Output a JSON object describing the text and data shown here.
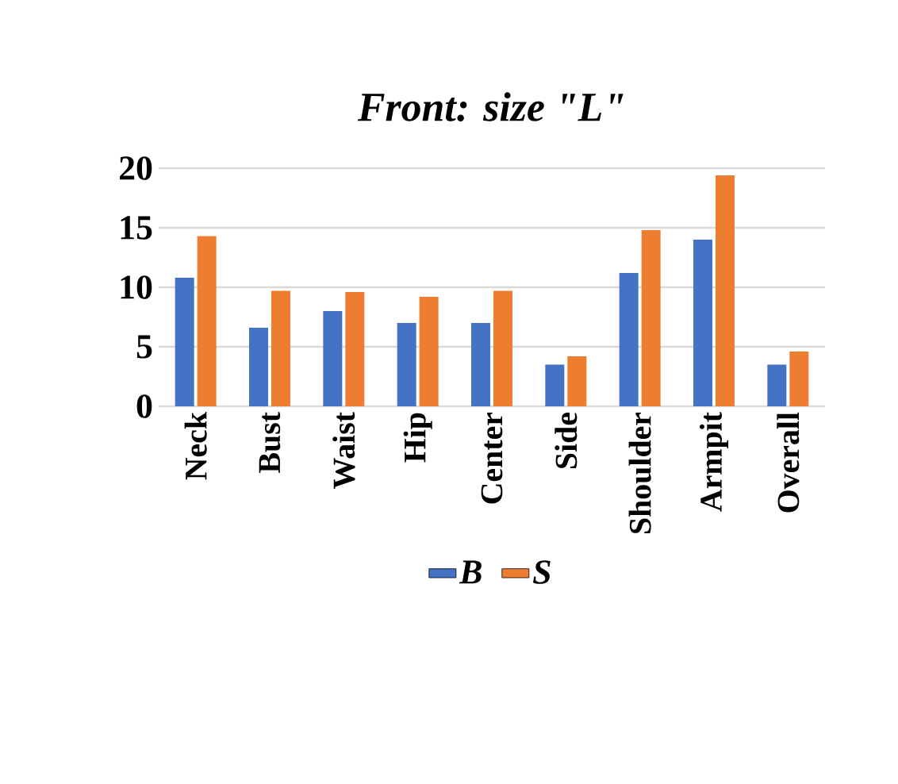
{
  "chart_data": {
    "type": "bar",
    "title": "Front: size \"L\"",
    "categories": [
      "Neck",
      "Bust",
      "Waist",
      "Hip",
      "Center",
      "Side",
      "Shoulder",
      "Armpit",
      "Overall"
    ],
    "series": [
      {
        "name": "B",
        "color": "#4472c4",
        "values": [
          10.8,
          6.6,
          8.0,
          7.0,
          7.0,
          3.5,
          11.2,
          14.0,
          3.5
        ]
      },
      {
        "name": "S",
        "color": "#ed7d31",
        "values": [
          14.3,
          9.7,
          9.6,
          9.2,
          9.7,
          4.2,
          14.8,
          19.4,
          4.6
        ]
      }
    ],
    "ylim": [
      0,
      20
    ],
    "yticks": [
      0,
      5,
      10,
      15,
      20
    ],
    "grid": "y",
    "legend": "bottom"
  }
}
